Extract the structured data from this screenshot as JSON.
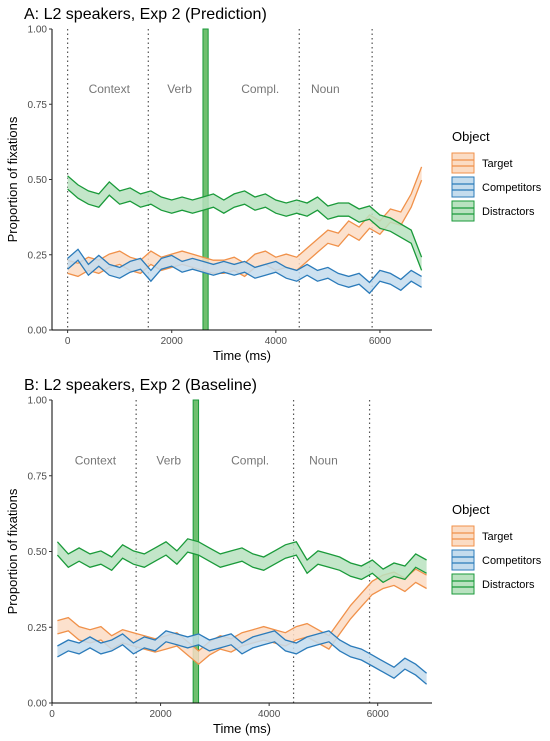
{
  "chart_data": [
    {
      "type": "line",
      "title": "A: L2 speakers, Exp 2 (Prediction)",
      "xlabel": "Time (ms)",
      "ylabel": "Proportion of fixations",
      "xlim": [
        -300,
        7000
      ],
      "ylim": [
        0,
        1
      ],
      "x_ticks": [
        0,
        2000,
        4000,
        6000
      ],
      "y_ticks": [
        0,
        0.25,
        0.5,
        0.75,
        1
      ],
      "x_tick_labels": [
        "0",
        "2000",
        "4000",
        "6000"
      ],
      "y_tick_labels": [
        "0.00",
        "0.25",
        "0.50",
        "0.75",
        "1.00"
      ],
      "grid": false,
      "legend_placement": "right",
      "legend_title": "Object",
      "vlines": [
        0,
        1550,
        4450,
        5850
      ],
      "target_bar": {
        "x0": 2600,
        "x1": 2700,
        "color": "#6fbf6f"
      },
      "regions": [
        {
          "label": "Context",
          "x": 800
        },
        {
          "label": "Verb",
          "x": 2150
        },
        {
          "label": "Compl.",
          "x": 3700
        },
        {
          "label": "Noun",
          "x": 4950
        }
      ],
      "series": [
        {
          "name": "Target",
          "color": "#f0914a",
          "fill": "#fbdcc4",
          "x": [
            0,
            200,
            400,
            600,
            800,
            1000,
            1200,
            1400,
            1600,
            1800,
            2000,
            2200,
            2400,
            2600,
            2800,
            3000,
            3200,
            3400,
            3600,
            3800,
            4000,
            4200,
            4400,
            4600,
            4800,
            5000,
            5200,
            5400,
            5600,
            5800,
            6000,
            6200,
            6400,
            6600,
            6800
          ],
          "y": [
            0.21,
            0.2,
            0.22,
            0.21,
            0.23,
            0.24,
            0.22,
            0.21,
            0.24,
            0.22,
            0.23,
            0.24,
            0.23,
            0.22,
            0.21,
            0.21,
            0.22,
            0.2,
            0.23,
            0.24,
            0.22,
            0.23,
            0.22,
            0.25,
            0.28,
            0.31,
            0.3,
            0.34,
            0.32,
            0.36,
            0.34,
            0.38,
            0.37,
            0.43,
            0.52
          ],
          "half_width": 0.022
        },
        {
          "name": "Competitors",
          "color": "#2b7bba",
          "fill": "#c4dced",
          "x": [
            0,
            200,
            400,
            600,
            800,
            1000,
            1200,
            1400,
            1600,
            1800,
            2000,
            2200,
            2400,
            2600,
            2800,
            3000,
            3200,
            3400,
            3600,
            3800,
            4000,
            4200,
            4400,
            4600,
            4800,
            5000,
            5200,
            5400,
            5600,
            5800,
            6000,
            6200,
            6400,
            6600,
            6800
          ],
          "y": [
            0.22,
            0.25,
            0.2,
            0.23,
            0.2,
            0.19,
            0.21,
            0.22,
            0.18,
            0.22,
            0.23,
            0.21,
            0.22,
            0.21,
            0.2,
            0.21,
            0.2,
            0.21,
            0.19,
            0.2,
            0.21,
            0.19,
            0.18,
            0.2,
            0.18,
            0.19,
            0.17,
            0.16,
            0.17,
            0.14,
            0.18,
            0.17,
            0.15,
            0.18,
            0.16
          ],
          "half_width": 0.018
        },
        {
          "name": "Distractors",
          "color": "#1a9a3a",
          "fill": "#b9e2c0",
          "x": [
            0,
            200,
            400,
            600,
            800,
            1000,
            1200,
            1400,
            1600,
            1800,
            2000,
            2200,
            2400,
            2600,
            2800,
            3000,
            3200,
            3400,
            3600,
            3800,
            4000,
            4200,
            4400,
            4600,
            4800,
            5000,
            5200,
            5400,
            5600,
            5800,
            6000,
            6200,
            6400,
            6600,
            6800
          ],
          "y": [
            0.49,
            0.46,
            0.44,
            0.43,
            0.47,
            0.44,
            0.45,
            0.43,
            0.44,
            0.42,
            0.41,
            0.42,
            0.41,
            0.42,
            0.43,
            0.41,
            0.43,
            0.44,
            0.42,
            0.43,
            0.41,
            0.4,
            0.41,
            0.4,
            0.42,
            0.39,
            0.4,
            0.4,
            0.38,
            0.39,
            0.36,
            0.35,
            0.33,
            0.31,
            0.22
          ],
          "half_width": 0.022
        }
      ]
    },
    {
      "type": "line",
      "title": "B: L2 speakers, Exp 2 (Baseline)",
      "xlabel": "Time (ms)",
      "ylabel": "Proportion of fixations",
      "xlim": [
        0,
        7000
      ],
      "ylim": [
        0,
        1
      ],
      "x_ticks": [
        0,
        2000,
        4000,
        6000
      ],
      "y_ticks": [
        0,
        0.25,
        0.5,
        0.75,
        1
      ],
      "x_tick_labels": [
        "0",
        "2000",
        "4000",
        "6000"
      ],
      "y_tick_labels": [
        "0.00",
        "0.25",
        "0.50",
        "0.75",
        "1.00"
      ],
      "grid": false,
      "legend_placement": "right",
      "legend_title": "Object",
      "vlines": [
        1550,
        4450,
        5850
      ],
      "target_bar": {
        "x0": 2600,
        "x1": 2700,
        "color": "#6fbf6f"
      },
      "regions": [
        {
          "label": "Context",
          "x": 800
        },
        {
          "label": "Verb",
          "x": 2150
        },
        {
          "label": "Compl.",
          "x": 3650
        },
        {
          "label": "Noun",
          "x": 5000
        }
      ],
      "series": [
        {
          "name": "Target",
          "color": "#f0914a",
          "fill": "#fbdcc4",
          "x": [
            100,
            300,
            500,
            700,
            900,
            1100,
            1300,
            1500,
            1700,
            1900,
            2100,
            2300,
            2500,
            2700,
            2900,
            3100,
            3300,
            3500,
            3700,
            3900,
            4100,
            4300,
            4500,
            4700,
            4900,
            5100,
            5300,
            5500,
            5700,
            5900,
            6100,
            6300,
            6500,
            6700,
            6900
          ],
          "y": [
            0.25,
            0.26,
            0.23,
            0.22,
            0.23,
            0.2,
            0.22,
            0.21,
            0.2,
            0.19,
            0.2,
            0.21,
            0.18,
            0.15,
            0.18,
            0.2,
            0.19,
            0.21,
            0.22,
            0.23,
            0.22,
            0.21,
            0.23,
            0.24,
            0.22,
            0.2,
            0.25,
            0.3,
            0.34,
            0.38,
            0.4,
            0.41,
            0.39,
            0.42,
            0.4
          ],
          "half_width": 0.022
        },
        {
          "name": "Competitors",
          "color": "#2b7bba",
          "fill": "#c4dced",
          "x": [
            100,
            300,
            500,
            700,
            900,
            1100,
            1300,
            1500,
            1700,
            1900,
            2100,
            2300,
            2500,
            2700,
            2900,
            3100,
            3300,
            3500,
            3700,
            3900,
            4100,
            4300,
            4500,
            4700,
            4900,
            5100,
            5300,
            5500,
            5700,
            5900,
            6100,
            6300,
            6500,
            6700,
            6900
          ],
          "y": [
            0.17,
            0.19,
            0.18,
            0.2,
            0.18,
            0.19,
            0.21,
            0.18,
            0.2,
            0.19,
            0.22,
            0.21,
            0.2,
            0.21,
            0.19,
            0.2,
            0.21,
            0.18,
            0.2,
            0.21,
            0.22,
            0.19,
            0.18,
            0.2,
            0.21,
            0.22,
            0.19,
            0.17,
            0.16,
            0.14,
            0.12,
            0.1,
            0.13,
            0.11,
            0.08
          ],
          "half_width": 0.018
        },
        {
          "name": "Distractors",
          "color": "#1a9a3a",
          "fill": "#b9e2c0",
          "x": [
            100,
            300,
            500,
            700,
            900,
            1100,
            1300,
            1500,
            1700,
            1900,
            2100,
            2300,
            2500,
            2700,
            2900,
            3100,
            3300,
            3500,
            3700,
            3900,
            4100,
            4300,
            4500,
            4700,
            4900,
            5100,
            5300,
            5500,
            5700,
            5900,
            6100,
            6300,
            6500,
            6700,
            6900
          ],
          "y": [
            0.51,
            0.47,
            0.49,
            0.47,
            0.48,
            0.46,
            0.5,
            0.48,
            0.47,
            0.49,
            0.51,
            0.48,
            0.52,
            0.51,
            0.49,
            0.47,
            0.48,
            0.49,
            0.47,
            0.46,
            0.48,
            0.5,
            0.51,
            0.45,
            0.48,
            0.47,
            0.46,
            0.44,
            0.43,
            0.45,
            0.42,
            0.44,
            0.43,
            0.47,
            0.45
          ],
          "half_width": 0.022
        }
      ]
    }
  ]
}
